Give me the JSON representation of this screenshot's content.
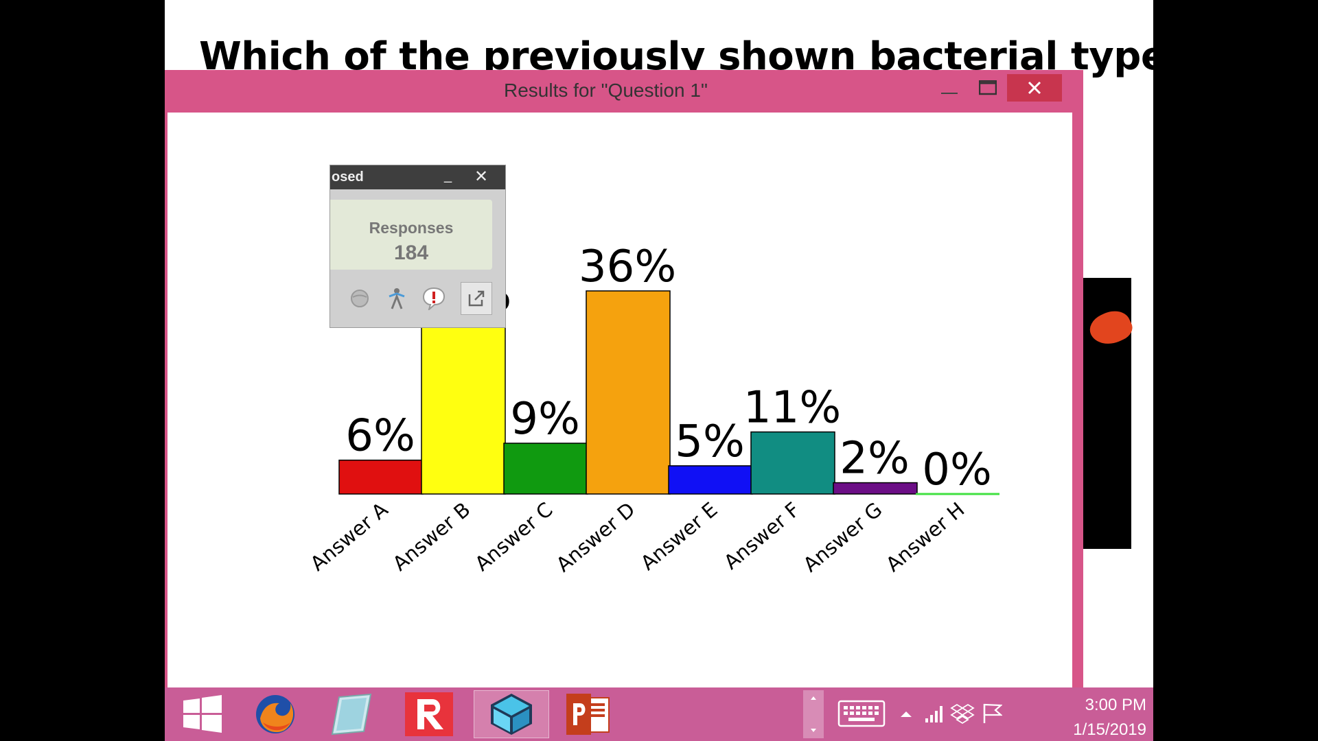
{
  "slide": {
    "title": "Which of the previously shown bacterial types would"
  },
  "results_window": {
    "title": "Results for \"Question 1\""
  },
  "responses_panel": {
    "title": "osed",
    "label": "Responses",
    "count": "184"
  },
  "chart_data": {
    "type": "bar",
    "categories": [
      "Answer A",
      "Answer B",
      "Answer C",
      "Answer D",
      "Answer E",
      "Answer F",
      "Answer G",
      "Answer H"
    ],
    "values": [
      6,
      31,
      9,
      36,
      5,
      11,
      2,
      0
    ],
    "data_labels": [
      "6%",
      "31%",
      "9%",
      "36%",
      "5%",
      "11%",
      "2%",
      "0%"
    ],
    "colors": [
      "#e01010",
      "#ffff10",
      "#109a10",
      "#f5a20e",
      "#1010f5",
      "#118d82",
      "#6c0e86",
      "#40e040"
    ],
    "ylim": [
      0,
      36
    ],
    "grid": false,
    "legend": "none"
  },
  "taskbar": {
    "icons": [
      "windows-start-icon",
      "firefox-icon",
      "notepad-icon",
      "response-app-icon",
      "box-app-icon",
      "powerpoint-icon"
    ],
    "time": "3:00 PM",
    "date": "1/15/2019"
  }
}
